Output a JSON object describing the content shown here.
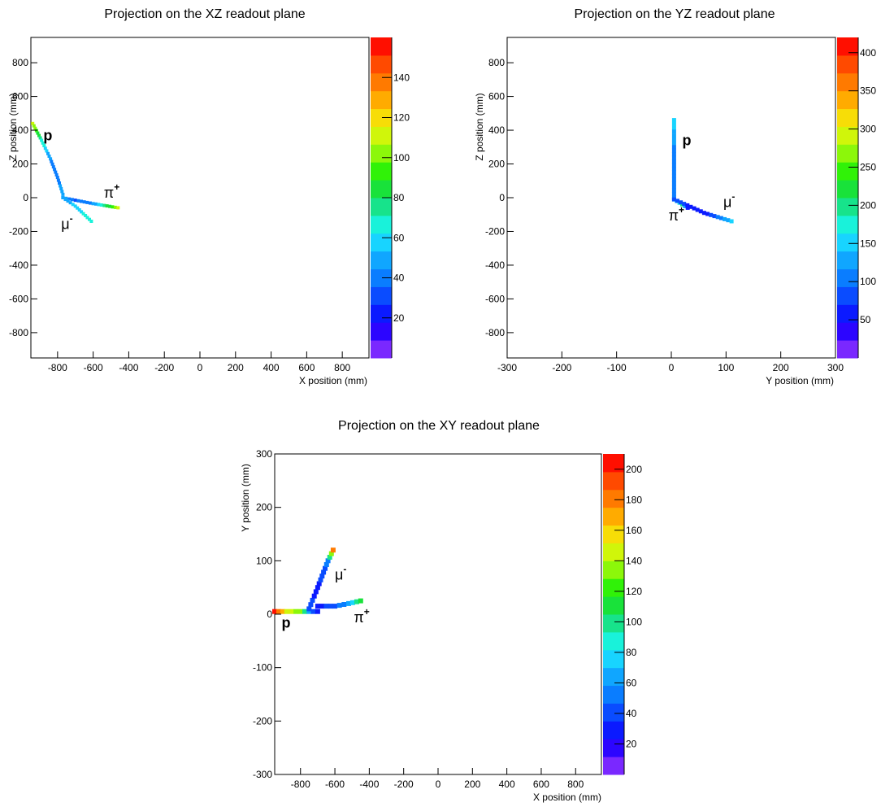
{
  "chart_data": [
    {
      "type": "heatmap",
      "title": "Projection on the XZ readout plane",
      "xlabel": "X position (mm)",
      "ylabel": "Z position (mm)",
      "xlim": [
        -950,
        950
      ],
      "ylim": [
        -950,
        950
      ],
      "xticks": [
        -800,
        -600,
        -400,
        -200,
        0,
        200,
        400,
        600,
        800
      ],
      "yticks": [
        -800,
        -600,
        -400,
        -200,
        0,
        200,
        400,
        600,
        800
      ],
      "colorbar": {
        "min": 0,
        "max": 160,
        "ticks": [
          20,
          40,
          60,
          80,
          100,
          120,
          140
        ]
      },
      "tracks": [
        {
          "label": "p",
          "points": [
            [
              -940,
              440,
              110
            ],
            [
              -890,
              340,
              70
            ],
            [
              -840,
              230,
              45
            ],
            [
              -800,
              120,
              40
            ],
            [
              -770,
              20,
              50
            ]
          ]
        },
        {
          "label": "π+",
          "points": [
            [
              -770,
              0,
              50
            ],
            [
              -700,
              -15,
              35
            ],
            [
              -600,
              -35,
              45
            ],
            [
              -460,
              -60,
              110
            ]
          ]
        },
        {
          "label": "μ-",
          "points": [
            [
              -770,
              0,
              50
            ],
            [
              -700,
              -50,
              55
            ],
            [
              -610,
              -140,
              70
            ]
          ]
        }
      ],
      "annotations": [
        {
          "text": "p",
          "x": -880,
          "y": 340
        },
        {
          "text": "π",
          "sup": "+",
          "x": -540,
          "y": 0
        },
        {
          "text": "μ",
          "sup": "-",
          "x": -780,
          "y": -185
        }
      ]
    },
    {
      "type": "heatmap",
      "title": "Projection on the YZ readout plane",
      "xlabel": "Y position (mm)",
      "ylabel": "Z position (mm)",
      "xlim": [
        -300,
        300
      ],
      "ylim": [
        -950,
        950
      ],
      "xticks": [
        -300,
        -200,
        -100,
        0,
        100,
        200,
        300
      ],
      "yticks": [
        -800,
        -600,
        -400,
        -200,
        0,
        200,
        400,
        600,
        800
      ],
      "colorbar": {
        "min": 0,
        "max": 420,
        "ticks": [
          50,
          100,
          150,
          200,
          250,
          300,
          350,
          400
        ]
      },
      "tracks": [
        {
          "label": "p",
          "points": [
            [
              5,
              460,
              160
            ],
            [
              5,
              300,
              110
            ],
            [
              5,
              150,
              100
            ],
            [
              5,
              0,
              110
            ]
          ]
        },
        {
          "label": "π+",
          "points": [
            [
              5,
              -10,
              140
            ],
            [
              20,
              -40,
              200
            ],
            [
              30,
              -60,
              60
            ]
          ]
        },
        {
          "label": "μ-",
          "points": [
            [
              5,
              -10,
              80
            ],
            [
              60,
              -90,
              50
            ],
            [
              110,
              -140,
              150
            ]
          ]
        }
      ],
      "annotations": [
        {
          "text": "p",
          "x": 20,
          "y": 310
        },
        {
          "text": "μ",
          "sup": "-",
          "x": 95,
          "y": -55
        },
        {
          "text": "π",
          "sup": "+",
          "x": -5,
          "y": -135
        }
      ]
    },
    {
      "type": "heatmap",
      "title": "Projection on the XY readout plane",
      "xlabel": "X position (mm)",
      "ylabel": "Y position (mm)",
      "xlim": [
        -950,
        950
      ],
      "ylim": [
        -300,
        300
      ],
      "xticks": [
        -800,
        -600,
        -400,
        -200,
        0,
        200,
        400,
        600,
        800
      ],
      "yticks": [
        -300,
        -200,
        -100,
        0,
        100,
        200,
        300
      ],
      "colorbar": {
        "min": 0,
        "max": 210,
        "ticks": [
          20,
          40,
          60,
          80,
          100,
          120,
          140,
          160,
          180,
          200
        ]
      },
      "tracks": [
        {
          "label": "p",
          "points": [
            [
              -950,
              5,
              200
            ],
            [
              -880,
              5,
              150
            ],
            [
              -800,
              5,
              130
            ],
            [
              -750,
              5,
              60
            ],
            [
              -700,
              5,
              30
            ]
          ]
        },
        {
          "label": "π+",
          "points": [
            [
              -700,
              15,
              30
            ],
            [
              -600,
              15,
              40
            ],
            [
              -520,
              20,
              60
            ],
            [
              -450,
              25,
              110
            ]
          ]
        },
        {
          "label": "μ-",
          "points": [
            [
              -750,
              10,
              40
            ],
            [
              -700,
              50,
              30
            ],
            [
              -640,
              100,
              50
            ],
            [
              -610,
              120,
              180
            ]
          ]
        }
      ],
      "annotations": [
        {
          "text": "μ",
          "sup": "-",
          "x": -600,
          "y": 65
        },
        {
          "text": "π",
          "sup": "+",
          "x": -490,
          "y": -15
        },
        {
          "text": "p",
          "x": -910,
          "y": -25
        }
      ]
    }
  ],
  "colors": {
    "frame": "#000000",
    "background": "#ffffff"
  },
  "palette": [
    "#7a28ff",
    "#2c05ff",
    "#0b1aff",
    "#0a4cff",
    "#0a7dff",
    "#10a6ff",
    "#18d4ff",
    "#19f2da",
    "#17e38b",
    "#19e23a",
    "#30f208",
    "#8cf70a",
    "#d0f60a",
    "#f7dd07",
    "#ffab00",
    "#ff7a00",
    "#ff4a00",
    "#ff0f00"
  ]
}
